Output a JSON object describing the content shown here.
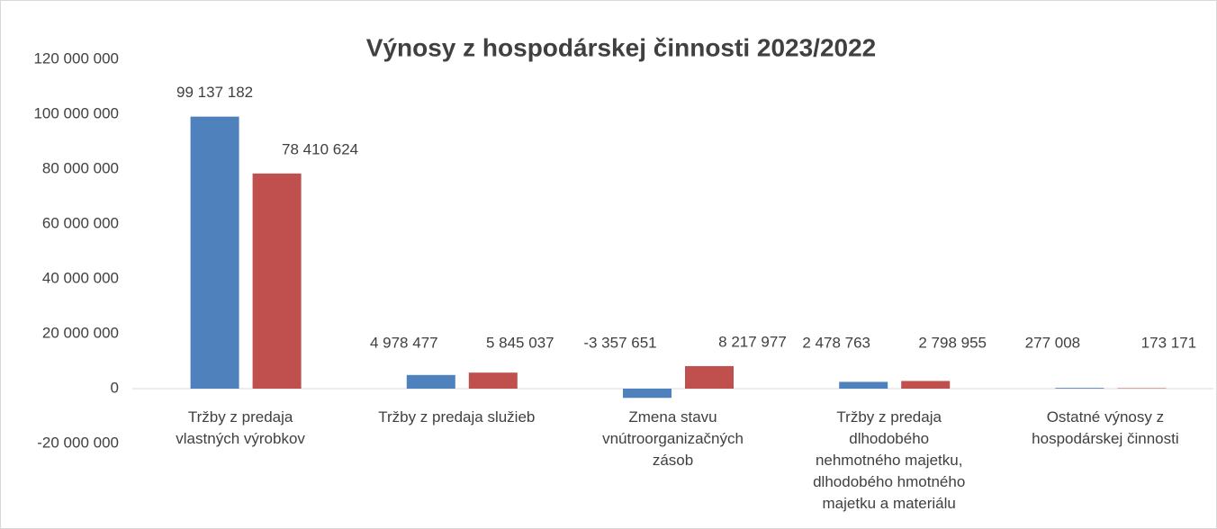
{
  "chart_data": {
    "type": "bar",
    "title": "Výnosy z hospodárskej činnosti 2023/2022",
    "categories": [
      "Tržby z predaja\nvlastných výrobkov",
      "Tržby z predaja služieb",
      "Zmena stavu\nvnútroorganizačných\nzásob",
      "Tržby z predaja\ndlhodobého\nnehmotného majetku,\ndlhodobého hmotného\nmajetku a materiálu",
      "Ostatné výnosy z\nhospodárskej činnosti"
    ],
    "series": [
      {
        "color": "#4f81bd",
        "values": [
          99137182,
          4978477,
          -3357651,
          2478763,
          277008
        ],
        "value_labels": [
          "99 137 182",
          "4 978 477",
          "-3 357 651",
          "2 478 763",
          "277 008"
        ]
      },
      {
        "color": "#c0504d",
        "values": [
          78410624,
          5845037,
          8217977,
          2798955,
          173171
        ],
        "value_labels": [
          "78 410 624",
          "5 845 037",
          "8 217 977",
          "2 798 955",
          "173 171"
        ]
      }
    ],
    "ylim": [
      -20000000,
      120000000
    ],
    "yticks": [
      {
        "value": -20000000,
        "label": "-20 000 000"
      },
      0,
      {
        "value": 20000000,
        "label": "20 000 000"
      },
      {
        "value": 40000000,
        "label": "40 000 000"
      },
      {
        "value": 60000000,
        "label": "60 000 000"
      },
      {
        "value": 80000000,
        "label": "80 000 000"
      },
      {
        "value": 100000000,
        "label": "100 000 000"
      },
      {
        "value": 120000000,
        "label": "120 000 000"
      }
    ],
    "grid": false
  }
}
